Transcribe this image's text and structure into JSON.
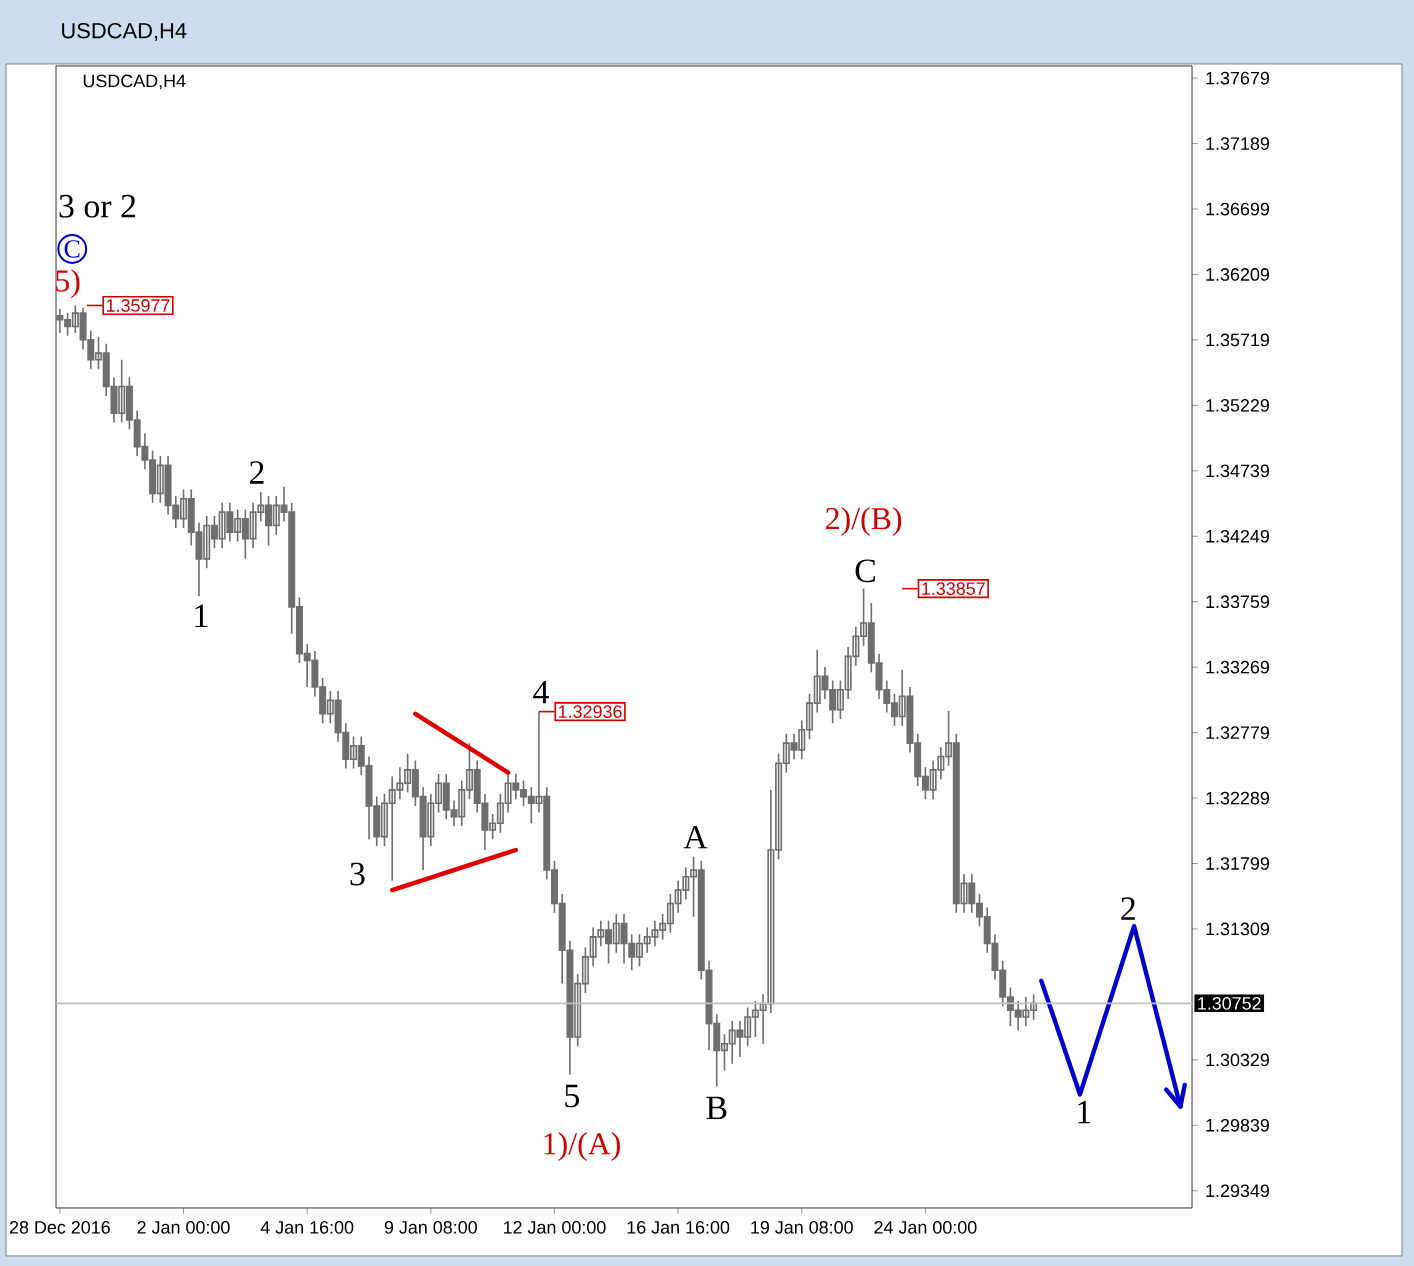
{
  "chart_data": {
    "type": "candlestick",
    "title": "USDCAD,H4",
    "subtitle": "USDCAD,H4",
    "color": "#6e6e6e",
    "categories": [
      "28 Dec 2016",
      null,
      null,
      null,
      null,
      null,
      null,
      null,
      null,
      null,
      null,
      null,
      null,
      null,
      null,
      null,
      "2 Jan 00:00",
      null,
      null,
      null,
      null,
      null,
      null,
      null,
      null,
      null,
      null,
      null,
      null,
      null,
      null,
      null,
      "4 Jan 16:00",
      null,
      null,
      null,
      null,
      null,
      null,
      null,
      null,
      null,
      null,
      null,
      null,
      null,
      null,
      null,
      "9 Jan 08:00",
      null,
      null,
      null,
      null,
      null,
      null,
      null,
      null,
      null,
      null,
      null,
      null,
      null,
      null,
      null,
      "12 Jan 00:00",
      null,
      null,
      null,
      null,
      null,
      null,
      null,
      null,
      null,
      null,
      null,
      null,
      null,
      null,
      null,
      "16 Jan 16:00",
      null,
      null,
      null,
      null,
      null,
      null,
      null,
      null,
      null,
      null,
      null,
      null,
      null,
      null,
      null,
      "19 Jan 08:00",
      null,
      null,
      null,
      null,
      null,
      null,
      null,
      null,
      null,
      null,
      null,
      null,
      null,
      null,
      null,
      "24 Jan 00:00",
      null,
      null,
      null,
      null,
      null,
      null,
      null,
      null,
      null,
      null,
      null,
      null,
      null,
      null,
      null,
      null,
      null,
      null,
      null,
      null,
      null,
      null,
      null,
      null,
      null,
      null,
      null,
      null,
      null,
      null,
      null,
      null,
      null,
      null
    ],
    "ohlc": [
      [
        1.359,
        1.3595,
        1.3577,
        1.3587
      ],
      [
        1.3587,
        1.3592,
        1.3575,
        1.3582
      ],
      [
        1.3582,
        1.35977,
        1.3577,
        1.3592
      ],
      [
        1.3592,
        1.3596,
        1.3565,
        1.3572
      ],
      [
        1.3572,
        1.3579,
        1.355,
        1.3557
      ],
      [
        1.3557,
        1.3574,
        1.355,
        1.3562
      ],
      [
        1.3562,
        1.3569,
        1.353,
        1.3537
      ],
      [
        1.3537,
        1.3544,
        1.351,
        1.3517
      ],
      [
        1.3517,
        1.3557,
        1.351,
        1.3537
      ],
      [
        1.3537,
        1.3544,
        1.3505,
        1.3512
      ],
      [
        1.3512,
        1.3519,
        1.3485,
        1.3492
      ],
      [
        1.3492,
        1.3502,
        1.3475,
        1.3482
      ],
      [
        1.3482,
        1.3489,
        1.345,
        1.3457
      ],
      [
        1.3457,
        1.3485,
        1.345,
        1.3478
      ],
      [
        1.3478,
        1.3485,
        1.3441,
        1.3448
      ],
      [
        1.3448,
        1.3455,
        1.3431,
        1.3438
      ],
      [
        1.3438,
        1.346,
        1.3431,
        1.3453
      ],
      [
        1.3453,
        1.346,
        1.3418,
        1.3428
      ],
      [
        1.3428,
        1.3435,
        1.338,
        1.3408
      ],
      [
        1.3408,
        1.344,
        1.3401,
        1.3433
      ],
      [
        1.3433,
        1.344,
        1.3416,
        1.3423
      ],
      [
        1.3423,
        1.345,
        1.3416,
        1.3443
      ],
      [
        1.3443,
        1.345,
        1.3421,
        1.3428
      ],
      [
        1.3428,
        1.3445,
        1.3421,
        1.3438
      ],
      [
        1.3438,
        1.3445,
        1.3408,
        1.3423
      ],
      [
        1.3423,
        1.345,
        1.3416,
        1.3443
      ],
      [
        1.3443,
        1.3458,
        1.3436,
        1.3448
      ],
      [
        1.3448,
        1.3455,
        1.3418,
        1.3433
      ],
      [
        1.3433,
        1.3455,
        1.3426,
        1.3448
      ],
      [
        1.3448,
        1.3462,
        1.3436,
        1.3443
      ],
      [
        1.3443,
        1.345,
        1.3352,
        1.3372
      ],
      [
        1.3372,
        1.3379,
        1.333,
        1.3337
      ],
      [
        1.3337,
        1.3344,
        1.3312,
        1.3332
      ],
      [
        1.3332,
        1.3339,
        1.3305,
        1.3312
      ],
      [
        1.3312,
        1.3319,
        1.3285,
        1.3292
      ],
      [
        1.3292,
        1.3309,
        1.3285,
        1.3302
      ],
      [
        1.3302,
        1.3309,
        1.3271,
        1.3278
      ],
      [
        1.3278,
        1.3285,
        1.3251,
        1.3258
      ],
      [
        1.3258,
        1.3275,
        1.3251,
        1.3268
      ],
      [
        1.3268,
        1.3275,
        1.3246,
        1.3253
      ],
      [
        1.3253,
        1.326,
        1.3198,
        1.3223
      ],
      [
        1.3223,
        1.323,
        1.3193,
        1.32
      ],
      [
        1.32,
        1.3232,
        1.3193,
        1.3225
      ],
      [
        1.3225,
        1.3245,
        1.3167,
        1.3235
      ],
      [
        1.3235,
        1.3252,
        1.3228,
        1.324
      ],
      [
        1.324,
        1.3262,
        1.3233,
        1.325
      ],
      [
        1.325,
        1.3257,
        1.3223,
        1.323
      ],
      [
        1.323,
        1.3237,
        1.3175,
        1.32
      ],
      [
        1.32,
        1.3232,
        1.3193,
        1.3225
      ],
      [
        1.3225,
        1.3247,
        1.3218,
        1.324
      ],
      [
        1.324,
        1.3247,
        1.3213,
        1.322
      ],
      [
        1.322,
        1.3227,
        1.3208,
        1.3215
      ],
      [
        1.3215,
        1.3242,
        1.3208,
        1.3235
      ],
      [
        1.3235,
        1.327,
        1.3228,
        1.325
      ],
      [
        1.325,
        1.3257,
        1.3218,
        1.3225
      ],
      [
        1.3225,
        1.3232,
        1.319,
        1.3205
      ],
      [
        1.3205,
        1.3217,
        1.3198,
        1.321
      ],
      [
        1.321,
        1.3232,
        1.3203,
        1.3225
      ],
      [
        1.3225,
        1.325,
        1.3218,
        1.324
      ],
      [
        1.324,
        1.3247,
        1.3228,
        1.3235
      ],
      [
        1.3235,
        1.3242,
        1.3223,
        1.323
      ],
      [
        1.323,
        1.3237,
        1.321,
        1.3225
      ],
      [
        1.3225,
        1.32936,
        1.3218,
        1.323
      ],
      [
        1.323,
        1.3237,
        1.3168,
        1.3175
      ],
      [
        1.3175,
        1.3182,
        1.3143,
        1.315
      ],
      [
        1.315,
        1.3157,
        1.309,
        1.3115
      ],
      [
        1.3115,
        1.3122,
        1.3022,
        1.305
      ],
      [
        1.305,
        1.3097,
        1.3043,
        1.309
      ],
      [
        1.309,
        1.3117,
        1.3083,
        1.311
      ],
      [
        1.311,
        1.3132,
        1.3103,
        1.3125
      ],
      [
        1.3125,
        1.3137,
        1.3118,
        1.313
      ],
      [
        1.313,
        1.3137,
        1.3105,
        1.312
      ],
      [
        1.312,
        1.3142,
        1.3113,
        1.3135
      ],
      [
        1.3135,
        1.3142,
        1.3105,
        1.312
      ],
      [
        1.312,
        1.3127,
        1.31,
        1.311
      ],
      [
        1.311,
        1.3127,
        1.3103,
        1.312
      ],
      [
        1.312,
        1.3132,
        1.3113,
        1.3125
      ],
      [
        1.3125,
        1.3137,
        1.3118,
        1.313
      ],
      [
        1.313,
        1.3142,
        1.3123,
        1.3135
      ],
      [
        1.3135,
        1.3157,
        1.3128,
        1.315
      ],
      [
        1.315,
        1.3167,
        1.3143,
        1.316
      ],
      [
        1.316,
        1.3177,
        1.3153,
        1.317
      ],
      [
        1.317,
        1.3185,
        1.314,
        1.3175
      ],
      [
        1.3175,
        1.3182,
        1.3093,
        1.31
      ],
      [
        1.31,
        1.3107,
        1.304,
        1.306
      ],
      [
        1.306,
        1.3067,
        1.3013,
        1.304
      ],
      [
        1.304,
        1.3052,
        1.3025,
        1.3045
      ],
      [
        1.3045,
        1.3062,
        1.303,
        1.3055
      ],
      [
        1.3055,
        1.3062,
        1.3035,
        1.305
      ],
      [
        1.305,
        1.3072,
        1.3043,
        1.3065
      ],
      [
        1.3065,
        1.3077,
        1.305,
        1.307
      ],
      [
        1.307,
        1.3082,
        1.3045,
        1.3075
      ],
      [
        1.3075,
        1.3235,
        1.3068,
        1.319
      ],
      [
        1.319,
        1.3262,
        1.3183,
        1.3255
      ],
      [
        1.3255,
        1.3277,
        1.3248,
        1.327
      ],
      [
        1.327,
        1.3277,
        1.3258,
        1.3265
      ],
      [
        1.3265,
        1.3287,
        1.3258,
        1.328
      ],
      [
        1.328,
        1.3307,
        1.3273,
        1.33
      ],
      [
        1.33,
        1.334,
        1.3293,
        1.332
      ],
      [
        1.332,
        1.3327,
        1.3303,
        1.331
      ],
      [
        1.331,
        1.3317,
        1.3285,
        1.3295
      ],
      [
        1.3295,
        1.3317,
        1.3288,
        1.331
      ],
      [
        1.331,
        1.3342,
        1.3303,
        1.3335
      ],
      [
        1.3335,
        1.3357,
        1.3328,
        1.335
      ],
      [
        1.335,
        1.33857,
        1.3343,
        1.336
      ],
      [
        1.336,
        1.3375,
        1.3323,
        1.333
      ],
      [
        1.333,
        1.3337,
        1.3303,
        1.331
      ],
      [
        1.331,
        1.3317,
        1.3293,
        1.33
      ],
      [
        1.33,
        1.3307,
        1.3283,
        1.329
      ],
      [
        1.329,
        1.3325,
        1.3283,
        1.3305
      ],
      [
        1.3305,
        1.3312,
        1.3263,
        1.327
      ],
      [
        1.327,
        1.3277,
        1.3238,
        1.3245
      ],
      [
        1.3245,
        1.3252,
        1.3228,
        1.3235
      ],
      [
        1.3235,
        1.3257,
        1.3228,
        1.325
      ],
      [
        1.325,
        1.3267,
        1.3243,
        1.326
      ],
      [
        1.326,
        1.3294,
        1.3253,
        1.327
      ],
      [
        1.327,
        1.3277,
        1.3143,
        1.315
      ],
      [
        1.315,
        1.3172,
        1.3143,
        1.3165
      ],
      [
        1.3165,
        1.3172,
        1.3143,
        1.315
      ],
      [
        1.315,
        1.3157,
        1.3133,
        1.314
      ],
      [
        1.314,
        1.3147,
        1.3113,
        1.312
      ],
      [
        1.312,
        1.3127,
        1.3093,
        1.31
      ],
      [
        1.31,
        1.3107,
        1.3073,
        1.308
      ],
      [
        1.308,
        1.3087,
        1.3058,
        1.307
      ],
      [
        1.307,
        1.3077,
        1.3055,
        1.3065
      ],
      [
        1.3065,
        1.308,
        1.3058,
        1.307
      ],
      [
        1.307,
        1.3082,
        1.3063,
        1.30752
      ],
      null,
      null,
      null,
      null,
      null,
      null,
      null,
      null,
      null,
      null,
      null,
      null,
      null,
      null,
      null,
      null,
      null,
      null,
      null,
      null
    ],
    "series": [
      {
        "type": "line",
        "color": "#dd0000",
        "values": [
          null,
          null,
          null,
          null,
          null,
          null,
          null,
          null,
          null,
          null,
          null,
          null,
          null,
          null,
          null,
          null,
          null,
          null,
          null,
          null,
          null,
          null,
          null,
          null,
          null,
          null,
          null,
          null,
          null,
          null,
          null,
          null,
          null,
          null,
          null,
          null,
          null,
          null,
          null,
          null,
          null,
          null,
          null,
          null,
          null,
          null,
          1.3292,
          null,
          null,
          null,
          null,
          null,
          null,
          null,
          null,
          null,
          null,
          null,
          1.3248,
          null,
          null,
          null,
          null,
          null,
          null,
          null,
          null,
          null,
          null,
          null,
          null,
          null,
          null,
          null,
          null,
          null,
          null,
          null,
          null,
          null,
          null,
          null,
          null,
          null,
          null,
          null,
          null,
          null,
          null,
          null,
          null,
          null,
          null,
          null,
          null,
          null,
          null,
          null,
          null,
          null,
          null,
          null,
          null,
          null,
          null,
          null,
          null,
          null,
          null,
          null,
          null,
          null,
          null,
          null,
          null,
          null,
          null,
          null,
          null,
          null,
          null,
          null,
          null,
          null,
          null,
          null,
          null,
          null,
          null,
          null,
          null,
          null,
          null,
          null,
          null,
          null,
          null,
          null,
          null,
          null,
          null,
          null,
          null,
          null,
          null,
          null,
          null
        ]
      },
      {
        "type": "line",
        "color": "#dd0000",
        "values": [
          null,
          null,
          null,
          null,
          null,
          null,
          null,
          null,
          null,
          null,
          null,
          null,
          null,
          null,
          null,
          null,
          null,
          null,
          null,
          null,
          null,
          null,
          null,
          null,
          null,
          null,
          null,
          null,
          null,
          null,
          null,
          null,
          null,
          null,
          null,
          null,
          null,
          null,
          null,
          null,
          null,
          null,
          null,
          1.316,
          null,
          null,
          null,
          null,
          null,
          null,
          null,
          null,
          null,
          null,
          null,
          null,
          null,
          null,
          null,
          1.319,
          null,
          null,
          null,
          null,
          null,
          null,
          null,
          null,
          null,
          null,
          null,
          null,
          null,
          null,
          null,
          null,
          null,
          null,
          null,
          null,
          null,
          null,
          null,
          null,
          null,
          null,
          null,
          null,
          null,
          null,
          null,
          null,
          null,
          null,
          null,
          null,
          null,
          null,
          null,
          null,
          null,
          null,
          null,
          null,
          null,
          null,
          null,
          null,
          null,
          null,
          null,
          null,
          null,
          null,
          null,
          null,
          null,
          null,
          null,
          null,
          null,
          null,
          null,
          null,
          null,
          null,
          null,
          null,
          null,
          null,
          null,
          null,
          null,
          null,
          null,
          null,
          null,
          null,
          null,
          null,
          null,
          null,
          null,
          null,
          null,
          null,
          null
        ]
      },
      {
        "type": "line",
        "color": "#0000cc",
        "values": [
          null,
          null,
          null,
          null,
          null,
          null,
          null,
          null,
          null,
          null,
          null,
          null,
          null,
          null,
          null,
          null,
          null,
          null,
          null,
          null,
          null,
          null,
          null,
          null,
          null,
          null,
          null,
          null,
          null,
          null,
          null,
          null,
          null,
          null,
          null,
          null,
          null,
          null,
          null,
          null,
          null,
          null,
          null,
          null,
          null,
          null,
          null,
          null,
          null,
          null,
          null,
          null,
          null,
          null,
          null,
          null,
          null,
          null,
          null,
          null,
          null,
          null,
          null,
          null,
          null,
          null,
          null,
          null,
          null,
          null,
          null,
          null,
          null,
          null,
          null,
          null,
          null,
          null,
          null,
          null,
          null,
          null,
          null,
          null,
          null,
          null,
          null,
          null,
          null,
          null,
          null,
          null,
          null,
          null,
          null,
          null,
          null,
          null,
          null,
          null,
          null,
          null,
          null,
          null,
          null,
          null,
          null,
          null,
          null,
          null,
          null,
          null,
          null,
          null,
          null,
          null,
          null,
          null,
          null,
          null,
          null,
          null,
          null,
          null,
          null,
          null,
          null,
          1.3092,
          null,
          null,
          null,
          null,
          1.3007,
          null,
          null,
          null,
          null,
          null,
          null,
          1.3133,
          null,
          null,
          null,
          null,
          null,
          1.2998,
          null
        ]
      }
    ],
    "ylim": [
      1.2922,
      1.3777
    ],
    "yticks": [
      1.37679,
      1.37189,
      1.36699,
      1.36209,
      1.35719,
      1.35229,
      1.34739,
      1.34249,
      1.33759,
      1.33269,
      1.32779,
      1.32289,
      1.31799,
      1.31309,
      1.30329,
      1.29839,
      1.29349
    ],
    "ref_lines": [
      {
        "axis": "y",
        "value": 1.30752,
        "label": "1.30752",
        "color": "#c0c0c0"
      }
    ],
    "annotations": [
      "3 or 2",
      "C",
      "5)",
      "1.35977",
      {
        "text": "2",
        "y": 1.3458
      },
      {
        "text": "1",
        "y": 1.338
      },
      "3",
      {
        "text": "4",
        "y": 1.32936
      },
      "1.32936",
      {
        "text": "5",
        "y": 1.3022
      },
      "1)/(A)",
      {
        "text": "A",
        "y": 1.3185
      },
      {
        "text": "B",
        "y": 1.3013
      },
      "2)/(B)",
      {
        "text": "C",
        "y": 1.33857
      },
      "1.33857",
      {
        "text": "1",
        "y": 1.3007
      },
      {
        "text": "2",
        "y": 1.3133
      }
    ]
  }
}
